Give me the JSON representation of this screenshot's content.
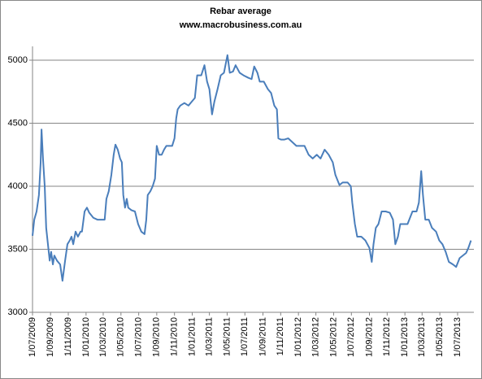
{
  "chart_data": {
    "type": "line",
    "title": "Rebar average",
    "subtitle": "www.macrobusiness.com.au",
    "ylim": [
      3000,
      5000
    ],
    "yticks": [
      3000,
      3500,
      4000,
      4500,
      5000
    ],
    "grid": true,
    "xlim": [
      "2009-07-01",
      "2013-08-26"
    ],
    "xticks": [
      {
        "value": "2009-07-01",
        "label": "1/07/2009"
      },
      {
        "value": "2009-09-01",
        "label": "1/09/2009"
      },
      {
        "value": "2009-11-01",
        "label": "1/11/2009"
      },
      {
        "value": "2010-01-01",
        "label": "1/01/2010"
      },
      {
        "value": "2010-03-01",
        "label": "1/03/2010"
      },
      {
        "value": "2010-05-01",
        "label": "1/05/2010"
      },
      {
        "value": "2010-07-01",
        "label": "1/07/2010"
      },
      {
        "value": "2010-09-01",
        "label": "1/09/2010"
      },
      {
        "value": "2010-11-01",
        "label": "1/11/2010"
      },
      {
        "value": "2011-01-01",
        "label": "1/01/2011"
      },
      {
        "value": "2011-03-01",
        "label": "1/03/2011"
      },
      {
        "value": "2011-05-01",
        "label": "1/05/2011"
      },
      {
        "value": "2011-07-01",
        "label": "1/07/2011"
      },
      {
        "value": "2011-09-01",
        "label": "1/09/2011"
      },
      {
        "value": "2011-11-01",
        "label": "1/11/2011"
      },
      {
        "value": "2012-01-01",
        "label": "1/01/2012"
      },
      {
        "value": "2012-03-01",
        "label": "1/03/2012"
      },
      {
        "value": "2012-05-01",
        "label": "1/05/2012"
      },
      {
        "value": "2012-07-01",
        "label": "1/07/2012"
      },
      {
        "value": "2012-09-01",
        "label": "1/09/2012"
      },
      {
        "value": "2012-11-01",
        "label": "1/11/2012"
      },
      {
        "value": "2013-01-01",
        "label": "1/01/2013"
      },
      {
        "value": "2013-03-01",
        "label": "1/03/2013"
      },
      {
        "value": "2013-05-01",
        "label": "1/05/2013"
      },
      {
        "value": "2013-07-01",
        "label": "1/07/2013"
      }
    ],
    "color": "#4a7ebb",
    "x": [
      "2009-07-01",
      "2009-07-07",
      "2009-07-15",
      "2009-07-23",
      "2009-07-29",
      "2009-08-01",
      "2009-08-06",
      "2009-08-12",
      "2009-08-17",
      "2009-08-23",
      "2009-08-29",
      "2009-09-03",
      "2009-09-09",
      "2009-09-14",
      "2009-09-23",
      "2009-10-04",
      "2009-10-12",
      "2009-10-21",
      "2009-10-29",
      "2009-11-06",
      "2009-11-12",
      "2009-11-18",
      "2009-11-26",
      "2009-12-04",
      "2009-12-13",
      "2009-12-18",
      "2009-12-27",
      "2010-01-04",
      "2010-01-12",
      "2010-01-26",
      "2010-02-09",
      "2010-02-23",
      "2010-03-06",
      "2010-03-12",
      "2010-03-20",
      "2010-03-29",
      "2010-04-06",
      "2010-04-12",
      "2010-04-20",
      "2010-04-28",
      "2010-05-04",
      "2010-05-09",
      "2010-05-15",
      "2010-05-21",
      "2010-05-26",
      "2010-06-06",
      "2010-06-18",
      "2010-06-29",
      "2010-07-10",
      "2010-07-21",
      "2010-07-27",
      "2010-08-01",
      "2010-08-10",
      "2010-08-18",
      "2010-08-26",
      "2010-09-01",
      "2010-09-09",
      "2010-09-18",
      "2010-09-26",
      "2010-10-04",
      "2010-10-24",
      "2010-11-01",
      "2010-11-07",
      "2010-11-12",
      "2010-11-21",
      "2010-12-05",
      "2010-12-19",
      "2010-12-30",
      "2011-01-10",
      "2011-01-18",
      "2011-02-01",
      "2011-02-12",
      "2011-02-21",
      "2011-03-01",
      "2011-03-10",
      "2011-03-18",
      "2011-03-29",
      "2011-04-09",
      "2011-04-20",
      "2011-05-02",
      "2011-05-10",
      "2011-05-21",
      "2011-05-30",
      "2011-06-13",
      "2011-06-26",
      "2011-07-13",
      "2011-07-24",
      "2011-08-02",
      "2011-08-13",
      "2011-08-21",
      "2011-09-04",
      "2011-09-18",
      "2011-09-29",
      "2011-10-10",
      "2011-10-19",
      "2011-10-24",
      "2011-11-02",
      "2011-11-13",
      "2011-11-27",
      "2011-12-11",
      "2011-12-25",
      "2012-01-22",
      "2012-02-05",
      "2012-02-19",
      "2012-03-04",
      "2012-03-17",
      "2012-03-31",
      "2012-04-14",
      "2012-04-28",
      "2012-05-07",
      "2012-05-21",
      "2012-06-01",
      "2012-06-18",
      "2012-06-29",
      "2012-07-04",
      "2012-07-13",
      "2012-07-21",
      "2012-08-04",
      "2012-08-18",
      "2012-09-01",
      "2012-09-09",
      "2012-09-15",
      "2012-09-23",
      "2012-10-02",
      "2012-10-13",
      "2012-10-27",
      "2012-11-10",
      "2012-11-21",
      "2012-11-29",
      "2012-12-08",
      "2012-12-16",
      "2013-01-10",
      "2013-01-27",
      "2013-02-10",
      "2013-02-18",
      "2013-02-26",
      "2013-03-04",
      "2013-03-12",
      "2013-03-24",
      "2013-04-04",
      "2013-04-18",
      "2013-04-29",
      "2013-05-10",
      "2013-05-21",
      "2013-06-01",
      "2013-06-15",
      "2013-06-26",
      "2013-07-08",
      "2013-07-19",
      "2013-07-30",
      "2013-08-07",
      "2013-08-16"
    ],
    "values": [
      3607,
      3735,
      3800,
      3930,
      4190,
      4450,
      4220,
      4000,
      3670,
      3540,
      3410,
      3480,
      3380,
      3450,
      3410,
      3380,
      3250,
      3410,
      3540,
      3570,
      3600,
      3540,
      3640,
      3600,
      3640,
      3640,
      3800,
      3830,
      3790,
      3750,
      3735,
      3735,
      3735,
      3900,
      3960,
      4090,
      4250,
      4330,
      4290,
      4220,
      4190,
      3930,
      3830,
      3900,
      3830,
      3810,
      3800,
      3700,
      3640,
      3620,
      3735,
      3930,
      3960,
      4000,
      4060,
      4320,
      4250,
      4250,
      4290,
      4320,
      4320,
      4380,
      4540,
      4610,
      4640,
      4660,
      4640,
      4670,
      4700,
      4880,
      4880,
      4960,
      4830,
      4770,
      4570,
      4670,
      4770,
      4880,
      4900,
      5040,
      4900,
      4910,
      4960,
      4900,
      4880,
      4860,
      4850,
      4950,
      4900,
      4830,
      4830,
      4770,
      4740,
      4640,
      4610,
      4380,
      4370,
      4370,
      4380,
      4350,
      4320,
      4320,
      4250,
      4220,
      4250,
      4220,
      4290,
      4250,
      4190,
      4090,
      4010,
      4030,
      4030,
      4000,
      3870,
      3700,
      3600,
      3600,
      3570,
      3510,
      3400,
      3540,
      3670,
      3700,
      3800,
      3800,
      3790,
      3735,
      3540,
      3600,
      3700,
      3700,
      3800,
      3800,
      3870,
      4120,
      3930,
      3735,
      3735,
      3670,
      3640,
      3570,
      3540,
      3480,
      3400,
      3380,
      3360,
      3430,
      3450,
      3470,
      3510,
      3570
    ]
  }
}
